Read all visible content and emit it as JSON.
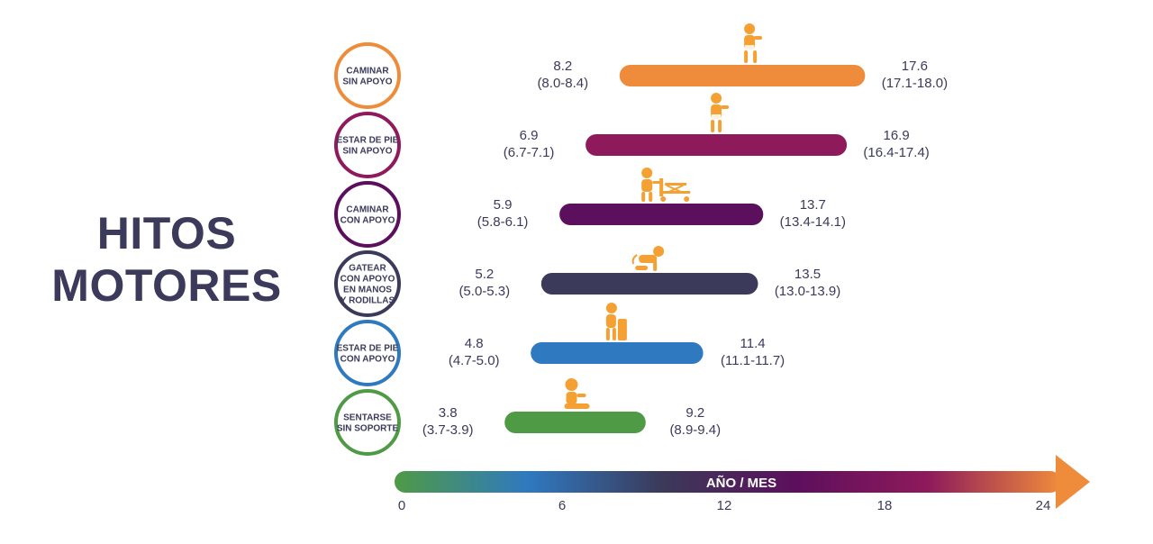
{
  "title": {
    "line1": "HITOS",
    "line2": "MOTORES"
  },
  "chart_data": {
    "type": "range-bar",
    "axis": {
      "label": "AÑO / MES",
      "ticks": [
        "0",
        "6",
        "12",
        "18",
        "24"
      ],
      "range": [
        0,
        24
      ]
    },
    "milestones": [
      {
        "label_lines": [
          "CAMINAR",
          "SIN APOYO"
        ],
        "start": 8.2,
        "start_ci": "(8.0-8.4)",
        "end": 17.6,
        "end_ci": "(17.1-18.0)",
        "color": "#ef8c3b",
        "icon": "walking-baby-icon"
      },
      {
        "label_lines": [
          "ESTAR DE PIE",
          "SIN APOYO"
        ],
        "start": 6.9,
        "start_ci": "(6.7-7.1)",
        "end": 16.9,
        "end_ci": "(16.4-17.4)",
        "color": "#8e1a5b",
        "icon": "standing-baby-icon"
      },
      {
        "label_lines": [
          "CAMINAR",
          "CON APOYO"
        ],
        "start": 5.9,
        "start_ci": "(5.8-6.1)",
        "end": 13.7,
        "end_ci": "(13.4-14.1)",
        "color": "#5c0f5c",
        "icon": "baby-walker-icon"
      },
      {
        "label_lines": [
          "GATEAR",
          "CON APOYO",
          "EN MANOS",
          "Y RODILLAS"
        ],
        "start": 5.2,
        "start_ci": "(5.0-5.3)",
        "end": 13.5,
        "end_ci": "(13.0-13.9)",
        "color": "#3b3a5a",
        "icon": "crawling-baby-icon"
      },
      {
        "label_lines": [
          "ESTAR DE PIE",
          "CON APOYO"
        ],
        "start": 4.8,
        "start_ci": "(4.7-5.0)",
        "end": 11.4,
        "end_ci": "(11.1-11.7)",
        "color": "#2f79c0",
        "icon": "supported-standing-baby-icon"
      },
      {
        "label_lines": [
          "SENTARSE",
          "SIN SOPORTE"
        ],
        "start": 3.8,
        "start_ci": "(3.7-3.9)",
        "end": 9.2,
        "end_ci": "(8.9-9.4)",
        "color": "#4f9a45",
        "icon": "sitting-baby-icon"
      }
    ],
    "gradient_colors": [
      "#4f9a45",
      "#2f79c0",
      "#3b3a5a",
      "#5c0f5c",
      "#8e1a5b",
      "#ef8c3b"
    ],
    "icon_color": "#f5a033",
    "text_color": "#3b3a5a"
  }
}
